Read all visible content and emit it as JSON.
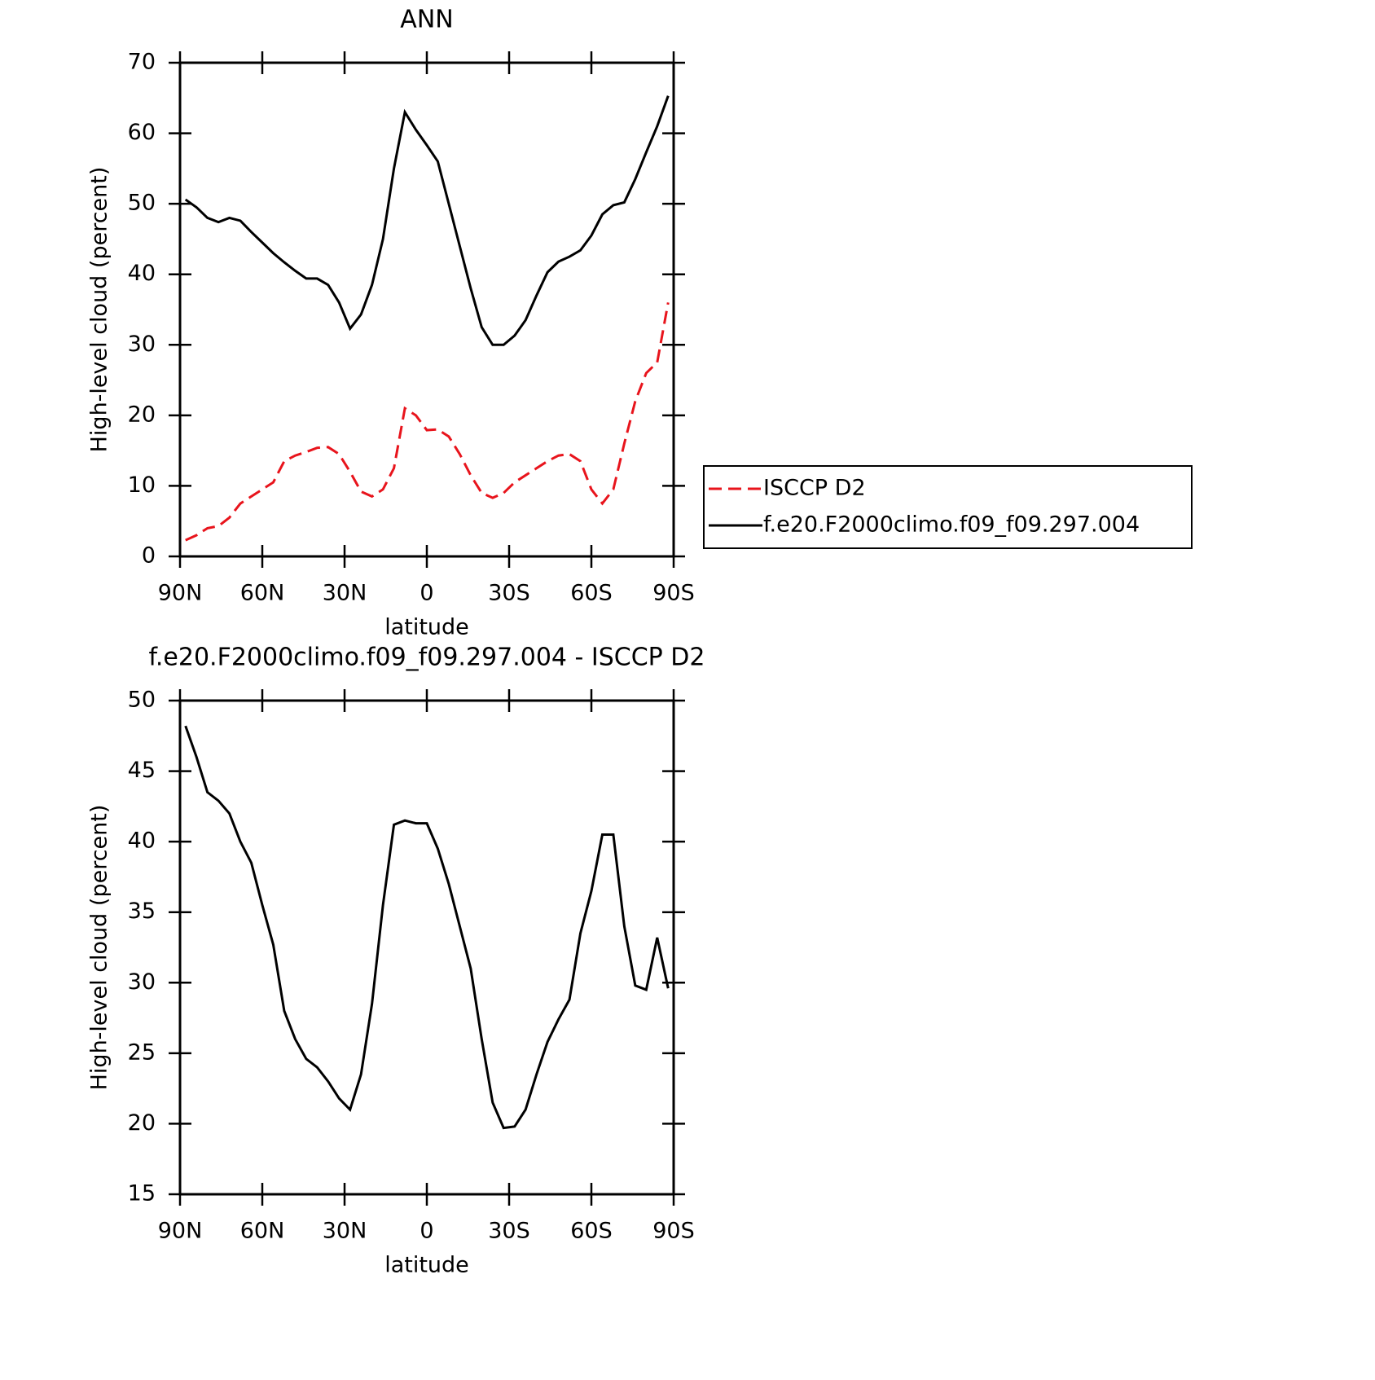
{
  "chart_data": [
    {
      "type": "line",
      "title": "ANN",
      "xlabel": "latitude",
      "ylabel": "High-level cloud (percent)",
      "x": [
        88,
        84,
        80,
        76,
        72,
        68,
        64,
        60,
        56,
        52,
        48,
        44,
        40,
        36,
        32,
        28,
        24,
        20,
        16,
        12,
        8,
        4,
        0,
        -4,
        -8,
        -12,
        -16,
        -20,
        -24,
        -28,
        -32,
        -36,
        -40,
        -44,
        -48,
        -52,
        -56,
        -60,
        -64,
        -68,
        -72,
        -76,
        -80,
        -84,
        -88
      ],
      "series": [
        {
          "name": "ISCCP D2",
          "color": "#e8141c",
          "dash": true,
          "values": [
            2.3,
            3,
            4,
            4.3,
            5.5,
            7.5,
            8.5,
            9.5,
            10.5,
            13.5,
            14.3,
            14.8,
            15.4,
            15.5,
            14.5,
            12,
            9.2,
            8.5,
            9.5,
            12.5,
            21,
            20,
            17.9,
            18,
            17,
            14.5,
            11.5,
            9,
            8.3,
            9,
            10.5,
            11.5,
            12.5,
            13.5,
            14.3,
            14.5,
            13.5,
            9.5,
            7.5,
            9.5,
            16,
            22,
            26,
            27.5,
            36
          ]
        },
        {
          "name": "f.e20.F2000climo.f09_f09.297.004",
          "color": "#000000",
          "dash": false,
          "values": [
            50.6,
            49.5,
            48,
            47.4,
            48,
            47.6,
            46,
            44.5,
            43,
            41.7,
            40.5,
            39.4,
            39.4,
            38.5,
            36,
            32.3,
            34.3,
            38.5,
            45,
            55,
            63,
            60.5,
            58.3,
            56,
            50,
            44,
            38,
            32.5,
            30,
            30,
            31.3,
            33.5,
            37,
            40.3,
            41.8,
            42.5,
            43.4,
            45.5,
            48.5,
            49.8,
            50.2,
            53.5,
            57.3,
            61,
            65.3
          ]
        }
      ],
      "xlim": [
        90,
        -90
      ],
      "xticks": [
        {
          "value": 90,
          "label": "90N"
        },
        {
          "value": 60,
          "label": "60N"
        },
        {
          "value": 30,
          "label": "30N"
        },
        0,
        {
          "value": -30,
          "label": "30S"
        },
        {
          "value": -60,
          "label": "60S"
        },
        {
          "value": -90,
          "label": "90S"
        }
      ],
      "ylim": [
        0,
        70
      ],
      "yticks": [
        0,
        10,
        20,
        30,
        40,
        50,
        60,
        70
      ],
      "legend": "right"
    },
    {
      "type": "line",
      "title": "f.e20.F2000climo.f09_f09.297.004 - ISCCP D2",
      "xlabel": "latitude",
      "ylabel": "High-level cloud (percent)",
      "x": [
        88,
        84,
        80,
        76,
        72,
        68,
        64,
        60,
        56,
        52,
        48,
        44,
        40,
        36,
        32,
        28,
        24,
        20,
        16,
        12,
        8,
        4,
        0,
        -4,
        -8,
        -12,
        -16,
        -20,
        -24,
        -28,
        -32,
        -36,
        -40,
        -44,
        -48,
        -52,
        -56,
        -60,
        -64,
        -68,
        -72,
        -76,
        -80,
        -84,
        -88
      ],
      "values": [
        48.2,
        46,
        43.5,
        42.9,
        42,
        40,
        38.5,
        35.5,
        32.7,
        28,
        26,
        24.6,
        24,
        23,
        21.8,
        21,
        23.5,
        28.5,
        35.5,
        41.2,
        41.5,
        41.3,
        41.3,
        39.5,
        37,
        34,
        31,
        26,
        21.5,
        19.7,
        19.8,
        21,
        23.5,
        25.8,
        27.4,
        28.8,
        33.5,
        36.5,
        40.5,
        40.5,
        34,
        29.8,
        29.5,
        33.2,
        29.6
      ],
      "color": "#000000",
      "xlim": [
        90,
        -90
      ],
      "xticks": [
        {
          "value": 90,
          "label": "90N"
        },
        {
          "value": 60,
          "label": "60N"
        },
        {
          "value": 30,
          "label": "30N"
        },
        0,
        {
          "value": -30,
          "label": "30S"
        },
        {
          "value": -60,
          "label": "60S"
        },
        {
          "value": -90,
          "label": "90S"
        }
      ],
      "ylim": [
        15,
        50
      ],
      "yticks": [
        15,
        20,
        25,
        30,
        35,
        40,
        45,
        50
      ]
    }
  ]
}
